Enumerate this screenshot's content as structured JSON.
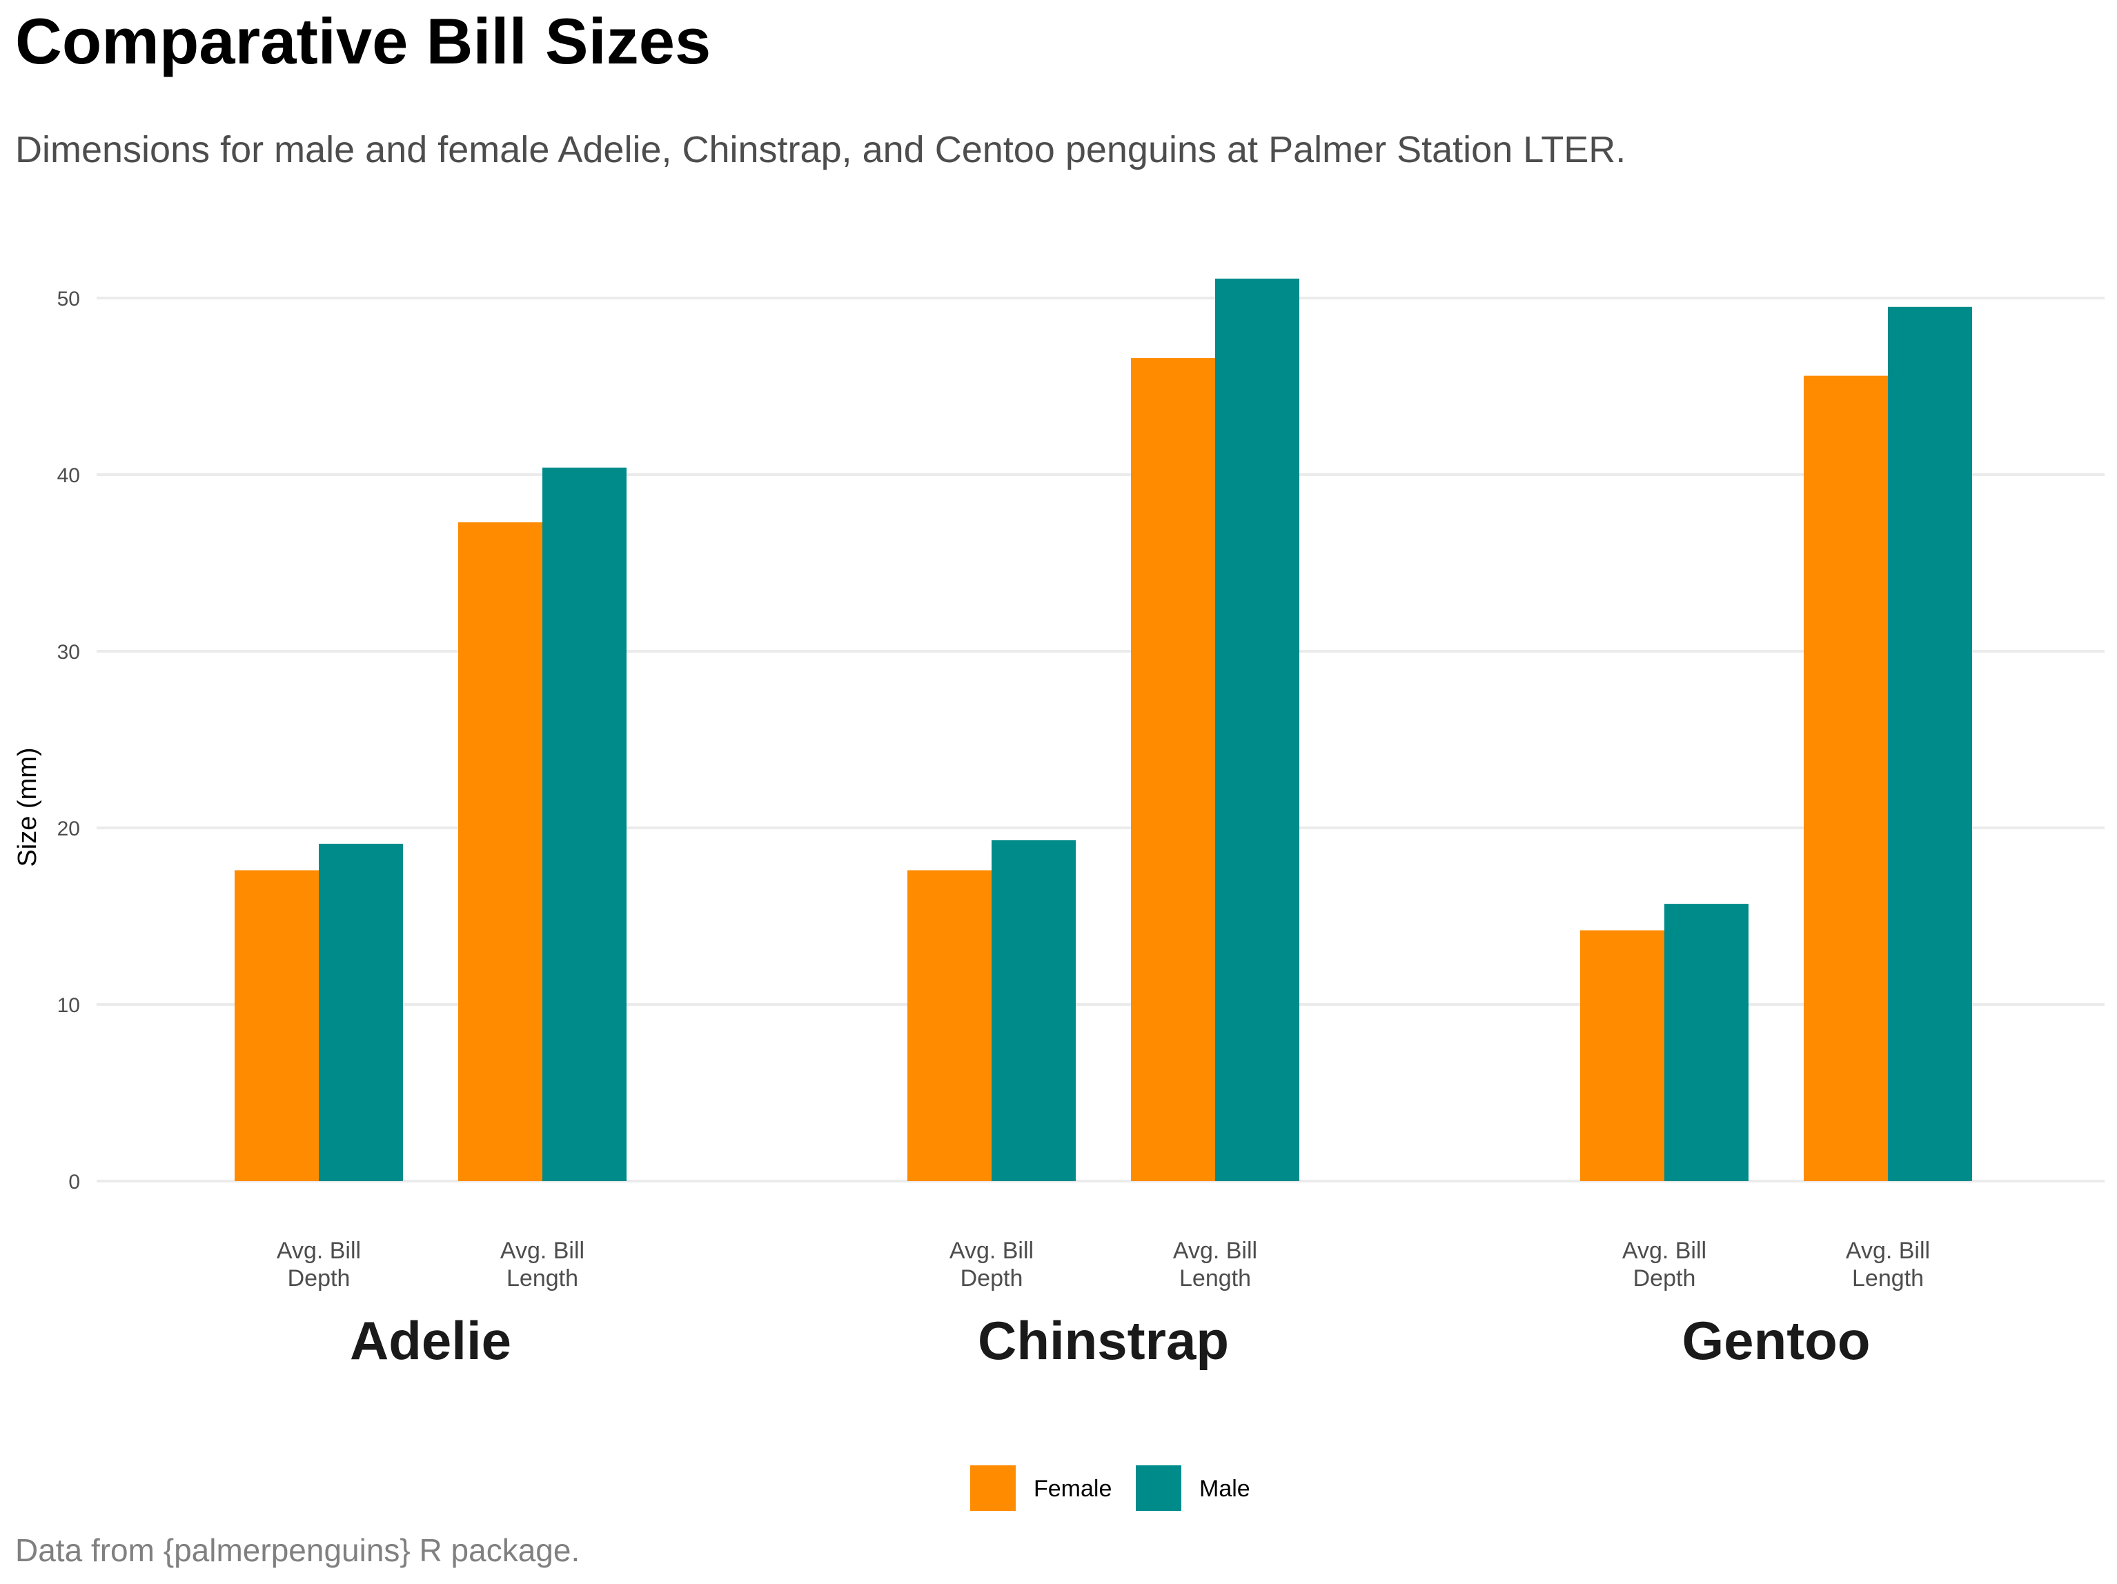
{
  "chart_data": {
    "type": "bar",
    "title": "Comparative Bill Sizes",
    "subtitle": "Dimensions for male and female Adelie, Chinstrap, and Centoo penguins at Palmer Station LTER.",
    "caption": "Data from {palmerpenguins} R package.",
    "ylabel": "Size (mm)",
    "xlabel": "",
    "ylim": [
      0,
      53
    ],
    "yticks": [
      0,
      10,
      20,
      30,
      40,
      50
    ],
    "grid": "horizontal",
    "legend_position": "bottom",
    "groups": [
      "Adelie",
      "Chinstrap",
      "Gentoo"
    ],
    "categories": [
      [
        "Avg. Bill",
        "Depth"
      ],
      [
        "Avg. Bill",
        "Length"
      ]
    ],
    "series": [
      {
        "name": "Female",
        "color": "#ff8c00",
        "values": [
          [
            17.6,
            37.3
          ],
          [
            17.6,
            46.6
          ],
          [
            14.2,
            45.6
          ]
        ]
      },
      {
        "name": "Male",
        "color": "#008b8b",
        "values": [
          [
            19.1,
            40.4
          ],
          [
            19.3,
            51.1
          ],
          [
            15.7,
            49.5
          ]
        ]
      }
    ]
  }
}
